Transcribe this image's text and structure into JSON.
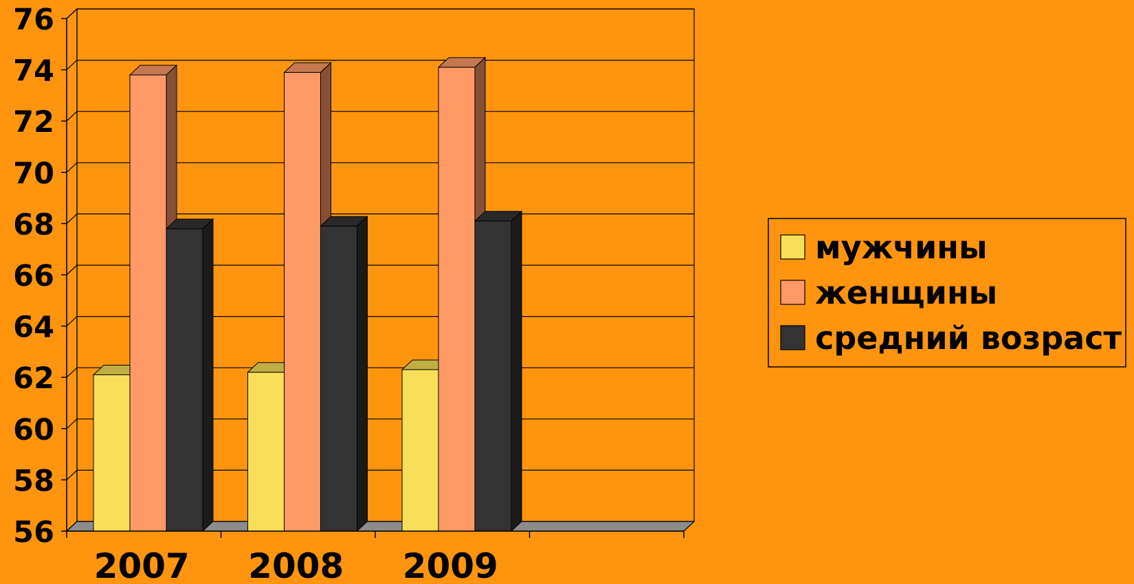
{
  "chart_data": {
    "type": "bar",
    "categories": [
      "2007",
      "2008",
      "2009",
      ""
    ],
    "series": [
      {
        "name": "мужчины",
        "values": [
          62.1,
          62.2,
          62.3,
          null
        ],
        "color": "#F9DE59"
      },
      {
        "name": "женщины",
        "values": [
          73.8,
          73.9,
          74.1,
          null
        ],
        "color": "#FF9966"
      },
      {
        "name": "средний возраст",
        "values": [
          67.8,
          67.9,
          68.1,
          null
        ],
        "color": "#333333"
      }
    ],
    "ylim": [
      56,
      76
    ],
    "yticks": [
      56,
      58,
      60,
      62,
      64,
      66,
      68,
      70,
      72,
      74,
      76
    ],
    "grid": true,
    "legend_position": "right",
    "colors": {
      "background": "#FF950E",
      "floor": "#8C8C8C",
      "gridline": "#000000"
    }
  }
}
